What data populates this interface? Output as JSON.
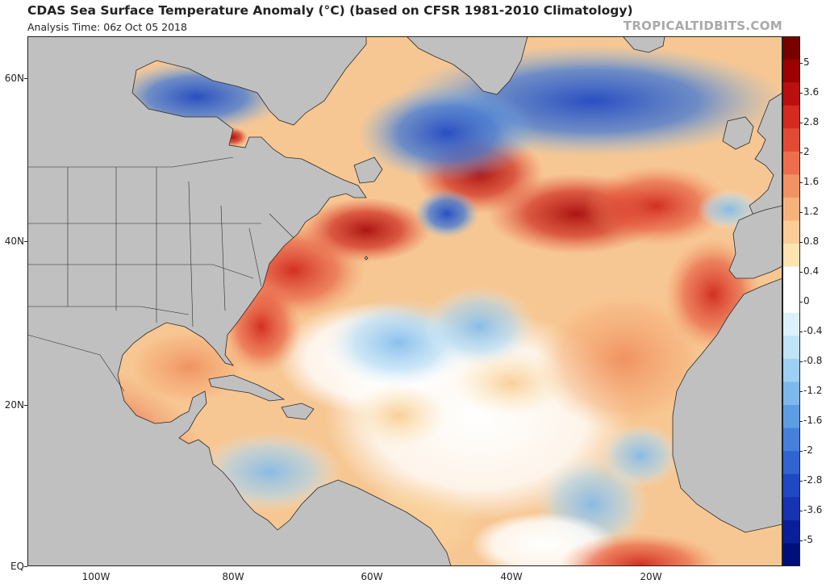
{
  "header": {
    "title": "CDAS Sea Surface Temperature Anomaly (°C) (based on CFSR 1981-2010 Climatology)",
    "subtitle": "Analysis Time: 06z Oct 05 2018",
    "credit": "TROPICALTIDBITS.COM"
  },
  "map": {
    "land_color": "#c0c0c0",
    "border_color": "#2a2a2a",
    "lat_labels": [
      "60N",
      "40N",
      "20N",
      "EQ"
    ],
    "lon_labels": [
      "100W",
      "80W",
      "60W",
      "40W",
      "20W"
    ]
  },
  "colorbar": {
    "labels": [
      "5",
      "3.6",
      "2.8",
      "2",
      "1.6",
      "1.2",
      "0.8",
      "0.4",
      "0",
      "-0.4",
      "-0.8",
      "-1.2",
      "-1.6",
      "-2",
      "-2.8",
      "-3.6",
      "-5"
    ],
    "colors": [
      "#7a0000",
      "#9c0000",
      "#bb0f0f",
      "#d42a20",
      "#e34a36",
      "#ed6e4c",
      "#f29262",
      "#f6b27c",
      "#f9cd95",
      "#fbe4b0",
      "#ffffff",
      "#ffffff",
      "#dcf1fb",
      "#bfe3f7",
      "#9dd0f2",
      "#7db9ec",
      "#5d9de3",
      "#4580db",
      "#3064d0",
      "#1f48c4",
      "#1533b3",
      "#0a1e9a",
      "#00107a"
    ]
  }
}
